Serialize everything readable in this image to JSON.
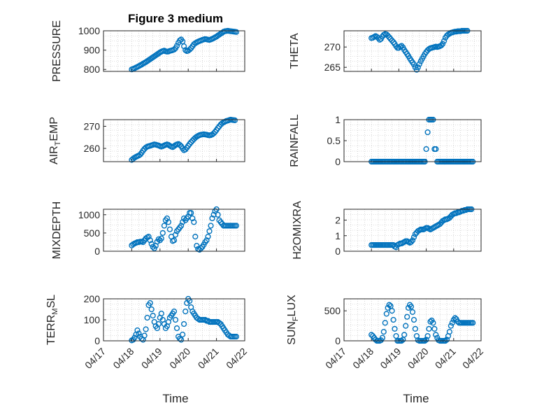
{
  "figure": {
    "title": "Figure 3 medium",
    "xlabel": "Time"
  },
  "style": {
    "marker_color": "#0072BD",
    "axis_color": "#262626",
    "grid_color": "#bdbdbd"
  },
  "chart_data": [
    {
      "type": "scatter",
      "marker": "circle",
      "ylabel": "PRESSURE",
      "xlim": [
        0,
        5
      ],
      "ylim": [
        790,
        1000
      ],
      "yticks": [
        800,
        900,
        1000
      ],
      "x": [
        1.0,
        1.05,
        1.1,
        1.15,
        1.2,
        1.25,
        1.3,
        1.35,
        1.4,
        1.45,
        1.5,
        1.55,
        1.6,
        1.65,
        1.7,
        1.75,
        1.8,
        1.85,
        1.9,
        1.95,
        2.0,
        2.05,
        2.1,
        2.15,
        2.2,
        2.25,
        2.3,
        2.35,
        2.4,
        2.45,
        2.5,
        2.55,
        2.6,
        2.65,
        2.7,
        2.75,
        2.8,
        2.85,
        2.9,
        2.95,
        3.0,
        3.05,
        3.1,
        3.15,
        3.2,
        3.25,
        3.3,
        3.35,
        3.4,
        3.45,
        3.5,
        3.55,
        3.6,
        3.65,
        3.7,
        3.75,
        3.8,
        3.85,
        3.9,
        3.95,
        4.0,
        4.05,
        4.1,
        4.15,
        4.2,
        4.25,
        4.3,
        4.35,
        4.4,
        4.45,
        4.5,
        4.55,
        4.6,
        4.65,
        4.7
      ],
      "y": [
        800,
        803,
        806,
        810,
        813,
        817,
        821,
        825,
        830,
        834,
        838,
        843,
        848,
        853,
        858,
        863,
        868,
        873,
        878,
        883,
        888,
        892,
        895,
        897,
        894,
        892,
        893,
        896,
        898,
        900,
        903,
        910,
        922,
        938,
        950,
        955,
        945,
        920,
        900,
        895,
        897,
        903,
        910,
        920,
        930,
        936,
        940,
        944,
        947,
        950,
        953,
        955,
        957,
        956,
        954,
        953,
        955,
        958,
        962,
        966,
        970,
        975,
        980,
        985,
        990,
        995,
        998,
        999,
        1000,
        999,
        998,
        997,
        996,
        995,
        994
      ]
    },
    {
      "type": "scatter",
      "marker": "circle",
      "ylabel": "THETA",
      "xlim": [
        0,
        5
      ],
      "ylim": [
        264,
        274
      ],
      "yticks": [
        265,
        270
      ],
      "x": [
        1.0,
        1.05,
        1.1,
        1.15,
        1.2,
        1.25,
        1.3,
        1.35,
        1.4,
        1.45,
        1.5,
        1.55,
        1.6,
        1.65,
        1.7,
        1.75,
        1.8,
        1.85,
        1.9,
        1.95,
        2.0,
        2.05,
        2.1,
        2.15,
        2.2,
        2.25,
        2.3,
        2.35,
        2.4,
        2.45,
        2.5,
        2.55,
        2.6,
        2.65,
        2.7,
        2.75,
        2.8,
        2.85,
        2.9,
        2.95,
        3.0,
        3.05,
        3.1,
        3.15,
        3.2,
        3.25,
        3.3,
        3.35,
        3.4,
        3.45,
        3.5,
        3.55,
        3.6,
        3.65,
        3.7,
        3.75,
        3.8,
        3.85,
        3.9,
        3.95,
        4.0,
        4.05,
        4.1,
        4.15,
        4.2,
        4.25,
        4.3,
        4.35,
        4.4,
        4.45,
        4.5
      ],
      "y": [
        272.2,
        272.3,
        272.5,
        272.7,
        272.5,
        272.2,
        271.8,
        272.0,
        272.6,
        273.0,
        273.2,
        273.1,
        272.8,
        272.4,
        272.0,
        271.6,
        271.2,
        270.8,
        270.2,
        269.8,
        269.8,
        270.1,
        270.3,
        269.9,
        269.3,
        268.8,
        268.3,
        267.8,
        267.2,
        266.7,
        266.2,
        265.7,
        265.0,
        264.4,
        265.0,
        265.8,
        266.5,
        267.1,
        267.7,
        268.3,
        268.8,
        269.2,
        269.5,
        269.7,
        269.8,
        269.9,
        270.0,
        270.1,
        270.0,
        270.1,
        270.2,
        270.4,
        270.8,
        271.5,
        272.3,
        272.8,
        273.1,
        273.3,
        273.5,
        273.6,
        273.7,
        273.8,
        273.8,
        273.9,
        273.9,
        273.9,
        274.0,
        274.0,
        274.0,
        274.0,
        274.0
      ]
    },
    {
      "type": "scatter",
      "marker": "circle",
      "ylabel": "AIR_TEMP",
      "xlim": [
        0,
        5
      ],
      "ylim": [
        254,
        273
      ],
      "yticks": [
        260,
        270
      ],
      "x": [
        1.0,
        1.05,
        1.1,
        1.15,
        1.2,
        1.25,
        1.3,
        1.35,
        1.4,
        1.45,
        1.5,
        1.55,
        1.6,
        1.65,
        1.7,
        1.75,
        1.8,
        1.85,
        1.9,
        1.95,
        2.0,
        2.05,
        2.1,
        2.15,
        2.2,
        2.25,
        2.3,
        2.35,
        2.4,
        2.45,
        2.5,
        2.55,
        2.6,
        2.65,
        2.7,
        2.75,
        2.8,
        2.85,
        2.9,
        2.95,
        3.0,
        3.05,
        3.1,
        3.15,
        3.2,
        3.25,
        3.3,
        3.35,
        3.4,
        3.45,
        3.5,
        3.55,
        3.6,
        3.65,
        3.7,
        3.75,
        3.8,
        3.85,
        3.9,
        3.95,
        4.0,
        4.05,
        4.1,
        4.15,
        4.2,
        4.25,
        4.3,
        4.35,
        4.4,
        4.45,
        4.5,
        4.55,
        4.6,
        4.65
      ],
      "y": [
        254.8,
        255.3,
        255.8,
        256.2,
        256.5,
        256.8,
        257.2,
        258.0,
        259.0,
        259.8,
        260.4,
        260.8,
        261.0,
        261.2,
        261.4,
        261.6,
        261.8,
        261.7,
        261.5,
        261.3,
        261.0,
        260.8,
        261.0,
        261.3,
        261.6,
        261.8,
        261.6,
        261.2,
        260.8,
        260.6,
        261.0,
        261.5,
        261.8,
        262.0,
        261.6,
        261.0,
        260.0,
        259.2,
        259.5,
        260.3,
        261.2,
        262.0,
        262.8,
        263.5,
        264.2,
        264.8,
        265.3,
        265.7,
        266.0,
        266.2,
        266.3,
        266.4,
        266.3,
        266.2,
        266.0,
        265.9,
        266.0,
        266.3,
        266.8,
        267.5,
        268.3,
        269.2,
        270.0,
        270.8,
        271.4,
        271.8,
        272.1,
        272.4,
        272.6,
        272.8,
        273.0,
        272.9,
        272.8,
        272.7
      ]
    },
    {
      "type": "scatter",
      "marker": "circle",
      "ylabel": "RAINFALL",
      "xlim": [
        0,
        5
      ],
      "ylim": [
        0,
        1
      ],
      "yticks": [
        0,
        0.5,
        1
      ],
      "x": [
        1.0,
        1.05,
        1.1,
        1.15,
        1.2,
        1.25,
        1.3,
        1.35,
        1.4,
        1.45,
        1.5,
        1.55,
        1.6,
        1.65,
        1.7,
        1.75,
        1.8,
        1.85,
        1.9,
        1.95,
        2.0,
        2.05,
        2.1,
        2.15,
        2.2,
        2.25,
        2.3,
        2.35,
        2.4,
        2.45,
        2.5,
        2.55,
        2.6,
        2.65,
        2.7,
        2.75,
        2.8,
        2.85,
        2.9,
        2.95,
        3.0,
        3.05,
        3.1,
        3.15,
        3.2,
        3.25,
        3.3,
        3.35,
        3.4,
        3.45,
        3.5,
        3.55,
        3.6,
        3.65,
        3.7,
        3.75,
        3.8,
        3.85,
        3.9,
        3.95,
        4.0,
        4.05,
        4.1,
        4.15,
        4.2,
        4.25,
        4.3,
        4.35,
        4.4,
        4.45,
        4.5,
        4.55,
        4.6,
        4.65,
        4.7
      ],
      "y": [
        0,
        0,
        0,
        0,
        0,
        0,
        0,
        0,
        0,
        0,
        0,
        0,
        0,
        0,
        0,
        0,
        0,
        0,
        0,
        0,
        0,
        0,
        0,
        0,
        0,
        0,
        0,
        0,
        0,
        0,
        0,
        0,
        0,
        0,
        0,
        0,
        0,
        0,
        0,
        0,
        0.3,
        0.7,
        1,
        1,
        1,
        1,
        0.3,
        0.3,
        0,
        0,
        0,
        0,
        0,
        0,
        0,
        0,
        0,
        0,
        0,
        0,
        0,
        0,
        0,
        0,
        0,
        0,
        0,
        0,
        0,
        0,
        0,
        0,
        0,
        0,
        0
      ]
    },
    {
      "type": "scatter",
      "marker": "circle",
      "ylabel": "MIXDEPTH",
      "xlim": [
        0,
        5
      ],
      "ylim": [
        0,
        1150
      ],
      "yticks": [
        0,
        500,
        1000
      ],
      "x": [
        1.0,
        1.05,
        1.1,
        1.15,
        1.2,
        1.25,
        1.3,
        1.35,
        1.4,
        1.45,
        1.5,
        1.55,
        1.6,
        1.65,
        1.7,
        1.75,
        1.8,
        1.85,
        1.9,
        1.95,
        2.0,
        2.05,
        2.1,
        2.15,
        2.2,
        2.25,
        2.3,
        2.35,
        2.4,
        2.45,
        2.5,
        2.55,
        2.6,
        2.65,
        2.7,
        2.75,
        2.8,
        2.85,
        2.9,
        2.95,
        3.0,
        3.05,
        3.1,
        3.15,
        3.2,
        3.25,
        3.3,
        3.35,
        3.4,
        3.45,
        3.5,
        3.55,
        3.6,
        3.65,
        3.7,
        3.75,
        3.8,
        3.85,
        3.9,
        3.95,
        4.0,
        4.05,
        4.1,
        4.15,
        4.2,
        4.25,
        4.3,
        4.35,
        4.4,
        4.45,
        4.5,
        4.55,
        4.6,
        4.65,
        4.7
      ],
      "y": [
        160,
        190,
        210,
        230,
        250,
        250,
        260,
        260,
        250,
        300,
        350,
        380,
        400,
        300,
        200,
        120,
        80,
        150,
        260,
        330,
        300,
        350,
        500,
        700,
        850,
        900,
        800,
        600,
        400,
        280,
        300,
        450,
        550,
        600,
        650,
        700,
        800,
        900,
        850,
        900,
        950,
        1050,
        1050,
        900,
        800,
        400,
        150,
        60,
        40,
        80,
        120,
        180,
        250,
        300,
        400,
        550,
        700,
        900,
        1000,
        1100,
        1150,
        1000,
        850,
        800,
        750,
        700,
        700,
        700,
        700,
        700,
        700,
        700,
        700,
        700,
        700
      ]
    },
    {
      "type": "scatter",
      "marker": "circle",
      "ylabel": "H2OMIXRA",
      "xlim": [
        0,
        5
      ],
      "ylim": [
        0,
        2.7
      ],
      "yticks": [
        0,
        1,
        2
      ],
      "x": [
        1.0,
        1.05,
        1.1,
        1.15,
        1.2,
        1.25,
        1.3,
        1.35,
        1.4,
        1.45,
        1.5,
        1.55,
        1.6,
        1.65,
        1.7,
        1.75,
        1.8,
        1.85,
        1.9,
        1.95,
        2.0,
        2.05,
        2.1,
        2.15,
        2.2,
        2.25,
        2.3,
        2.35,
        2.4,
        2.45,
        2.5,
        2.55,
        2.6,
        2.65,
        2.7,
        2.75,
        2.8,
        2.85,
        2.9,
        2.95,
        3.0,
        3.05,
        3.1,
        3.15,
        3.2,
        3.25,
        3.3,
        3.35,
        3.4,
        3.45,
        3.5,
        3.55,
        3.6,
        3.65,
        3.7,
        3.75,
        3.8,
        3.85,
        3.9,
        3.95,
        4.0,
        4.05,
        4.1,
        4.15,
        4.2,
        4.25,
        4.3,
        4.35,
        4.4,
        4.45,
        4.5,
        4.55,
        4.6,
        4.65
      ],
      "y": [
        0.4,
        0.4,
        0.4,
        0.4,
        0.4,
        0.4,
        0.4,
        0.4,
        0.4,
        0.4,
        0.4,
        0.4,
        0.4,
        0.4,
        0.4,
        0.4,
        0.4,
        0.3,
        0.25,
        0.4,
        0.45,
        0.5,
        0.5,
        0.55,
        0.6,
        0.65,
        0.65,
        0.6,
        0.55,
        0.6,
        0.7,
        0.9,
        1.1,
        1.2,
        1.3,
        1.35,
        1.4,
        1.4,
        1.4,
        1.45,
        1.5,
        1.5,
        1.45,
        1.4,
        1.45,
        1.5,
        1.55,
        1.6,
        1.65,
        1.7,
        1.75,
        1.85,
        1.95,
        2.0,
        2.05,
        2.05,
        2.1,
        2.15,
        2.25,
        2.35,
        2.4,
        2.45,
        2.45,
        2.5,
        2.5,
        2.55,
        2.6,
        2.6,
        2.65,
        2.65,
        2.7,
        2.7,
        2.7,
        2.7
      ]
    },
    {
      "type": "scatter",
      "marker": "circle",
      "ylabel": "TERR_MSL",
      "xlim": [
        0,
        5
      ],
      "ylim": [
        0,
        200
      ],
      "yticks": [
        0,
        100,
        200
      ],
      "x": [
        1.0,
        1.05,
        1.1,
        1.15,
        1.2,
        1.25,
        1.3,
        1.35,
        1.4,
        1.45,
        1.5,
        1.55,
        1.6,
        1.65,
        1.7,
        1.75,
        1.8,
        1.85,
        1.9,
        1.95,
        2.0,
        2.05,
        2.1,
        2.15,
        2.2,
        2.25,
        2.3,
        2.35,
        2.4,
        2.45,
        2.5,
        2.55,
        2.6,
        2.65,
        2.7,
        2.75,
        2.8,
        2.85,
        2.9,
        2.95,
        3.0,
        3.05,
        3.1,
        3.15,
        3.2,
        3.25,
        3.3,
        3.35,
        3.4,
        3.45,
        3.5,
        3.55,
        3.6,
        3.65,
        3.7,
        3.75,
        3.8,
        3.85,
        3.9,
        3.95,
        4.0,
        4.05,
        4.1,
        4.15,
        4.2,
        4.25,
        4.3,
        4.35,
        4.4,
        4.45,
        4.5,
        4.55,
        4.6,
        4.65,
        4.7
      ],
      "y": [
        2,
        5,
        15,
        30,
        50,
        35,
        20,
        10,
        5,
        25,
        55,
        110,
        170,
        180,
        150,
        120,
        90,
        70,
        60,
        80,
        110,
        130,
        100,
        80,
        60,
        70,
        90,
        110,
        120,
        130,
        140,
        100,
        60,
        20,
        10,
        5,
        30,
        80,
        140,
        180,
        200,
        190,
        160,
        140,
        130,
        120,
        110,
        105,
        100,
        100,
        100,
        100,
        100,
        95,
        95,
        90,
        90,
        90,
        90,
        90,
        90,
        90,
        85,
        80,
        70,
        60,
        50,
        40,
        30,
        25,
        20,
        20,
        20,
        20,
        20
      ]
    },
    {
      "type": "scatter",
      "marker": "circle",
      "ylabel": "SUN_FLUX",
      "xlim": [
        0,
        5
      ],
      "ylim": [
        0,
        700
      ],
      "yticks": [
        0,
        500
      ],
      "x": [
        1.0,
        1.05,
        1.1,
        1.15,
        1.2,
        1.25,
        1.3,
        1.35,
        1.4,
        1.45,
        1.5,
        1.55,
        1.6,
        1.65,
        1.7,
        1.75,
        1.8,
        1.85,
        1.9,
        1.95,
        2.0,
        2.05,
        2.1,
        2.15,
        2.2,
        2.25,
        2.3,
        2.35,
        2.4,
        2.45,
        2.5,
        2.55,
        2.6,
        2.65,
        2.7,
        2.75,
        2.8,
        2.85,
        2.9,
        2.95,
        3.0,
        3.05,
        3.1,
        3.15,
        3.2,
        3.25,
        3.3,
        3.35,
        3.4,
        3.45,
        3.5,
        3.55,
        3.6,
        3.65,
        3.7,
        3.75,
        3.8,
        3.85,
        3.9,
        3.95,
        4.0,
        4.05,
        4.1,
        4.15,
        4.2,
        4.25,
        4.3,
        4.35,
        4.4,
        4.45,
        4.5,
        4.55,
        4.6,
        4.65,
        4.7
      ],
      "y": [
        100,
        80,
        50,
        20,
        0,
        0,
        0,
        10,
        50,
        150,
        300,
        450,
        550,
        600,
        580,
        500,
        350,
        200,
        80,
        0,
        0,
        0,
        0,
        20,
        100,
        250,
        400,
        550,
        600,
        570,
        480,
        350,
        200,
        80,
        10,
        0,
        0,
        0,
        0,
        0,
        20,
        80,
        200,
        320,
        340,
        300,
        200,
        100,
        50,
        10,
        0,
        0,
        0,
        0,
        0,
        20,
        80,
        150,
        250,
        300,
        350,
        380,
        360,
        320,
        300,
        300,
        300,
        300,
        300,
        300,
        300,
        300,
        300,
        300,
        300
      ]
    }
  ],
  "x_ticks": [
    "04/17",
    "04/18",
    "04/19",
    "04/20",
    "04/21",
    "04/22"
  ]
}
